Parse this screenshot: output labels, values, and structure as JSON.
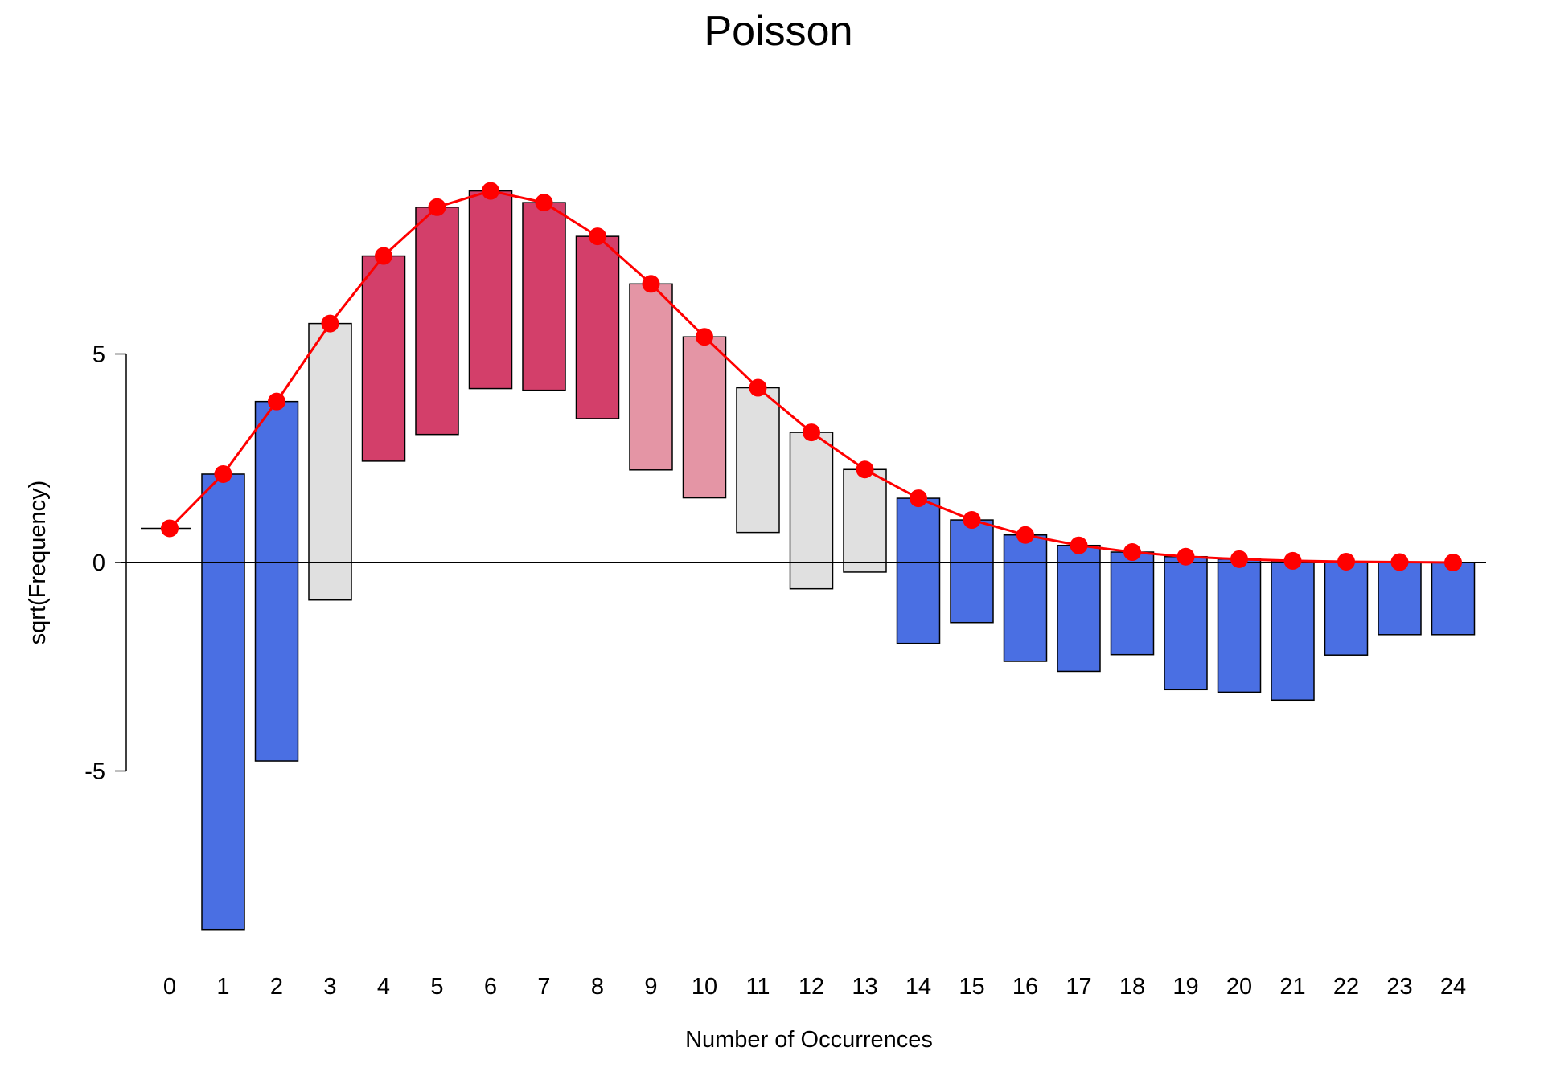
{
  "chart_data": {
    "type": "bar",
    "title": "Poisson",
    "xlabel": "Number of Occurrences",
    "ylabel": "sqrt(Frequency)",
    "ylim": [
      -9,
      10.5
    ],
    "yticks": [
      "-5",
      "0",
      "5"
    ],
    "ytick_values": [
      -5,
      0,
      5
    ],
    "categories": [
      "0",
      "1",
      "2",
      "3",
      "4",
      "5",
      "6",
      "7",
      "8",
      "9",
      "10",
      "11",
      "12",
      "13",
      "14",
      "15",
      "16",
      "17",
      "18",
      "19",
      "20",
      "21",
      "22",
      "23",
      "24"
    ],
    "series": [
      {
        "kind": "hanging-bar",
        "fitted_sqrt": [
          0.82,
          2.12,
          3.86,
          5.73,
          7.35,
          8.52,
          8.91,
          8.63,
          7.82,
          6.68,
          5.41,
          4.19,
          3.12,
          2.23,
          1.54,
          1.02,
          0.66,
          0.41,
          0.25,
          0.14,
          0.08,
          0.04,
          0.02,
          0.01,
          0.0
        ],
        "bar_bottom": [
          0.82,
          -8.8,
          -4.76,
          -0.9,
          2.43,
          3.07,
          4.17,
          4.13,
          3.45,
          2.22,
          1.55,
          0.72,
          -0.63,
          -0.23,
          -1.94,
          -1.44,
          -2.37,
          -2.61,
          -2.21,
          -3.05,
          -3.11,
          -3.3,
          -2.22,
          -1.73,
          -1.73
        ],
        "colors": [
          "#e0e0e0",
          "#4a6fe3",
          "#4a6fe3",
          "#e0e0e0",
          "#d33f6a",
          "#d33f6a",
          "#d33f6a",
          "#d33f6a",
          "#d33f6a",
          "#e495a5",
          "#e495a5",
          "#e0e0e0",
          "#e0e0e0",
          "#e0e0e0",
          "#4a6fe3",
          "#4a6fe3",
          "#4a6fe3",
          "#4a6fe3",
          "#4a6fe3",
          "#4a6fe3",
          "#4a6fe3",
          "#4a6fe3",
          "#4a6fe3",
          "#4a6fe3",
          "#4a6fe3"
        ]
      },
      {
        "kind": "fitted-line",
        "color": "#ff0000",
        "values": [
          0.82,
          2.12,
          3.86,
          5.73,
          7.35,
          8.52,
          8.91,
          8.63,
          7.82,
          6.68,
          5.41,
          4.19,
          3.12,
          2.23,
          1.54,
          1.02,
          0.66,
          0.41,
          0.25,
          0.14,
          0.08,
          0.04,
          0.02,
          0.01,
          0.0
        ]
      }
    ],
    "grid": false,
    "legend": "none"
  }
}
